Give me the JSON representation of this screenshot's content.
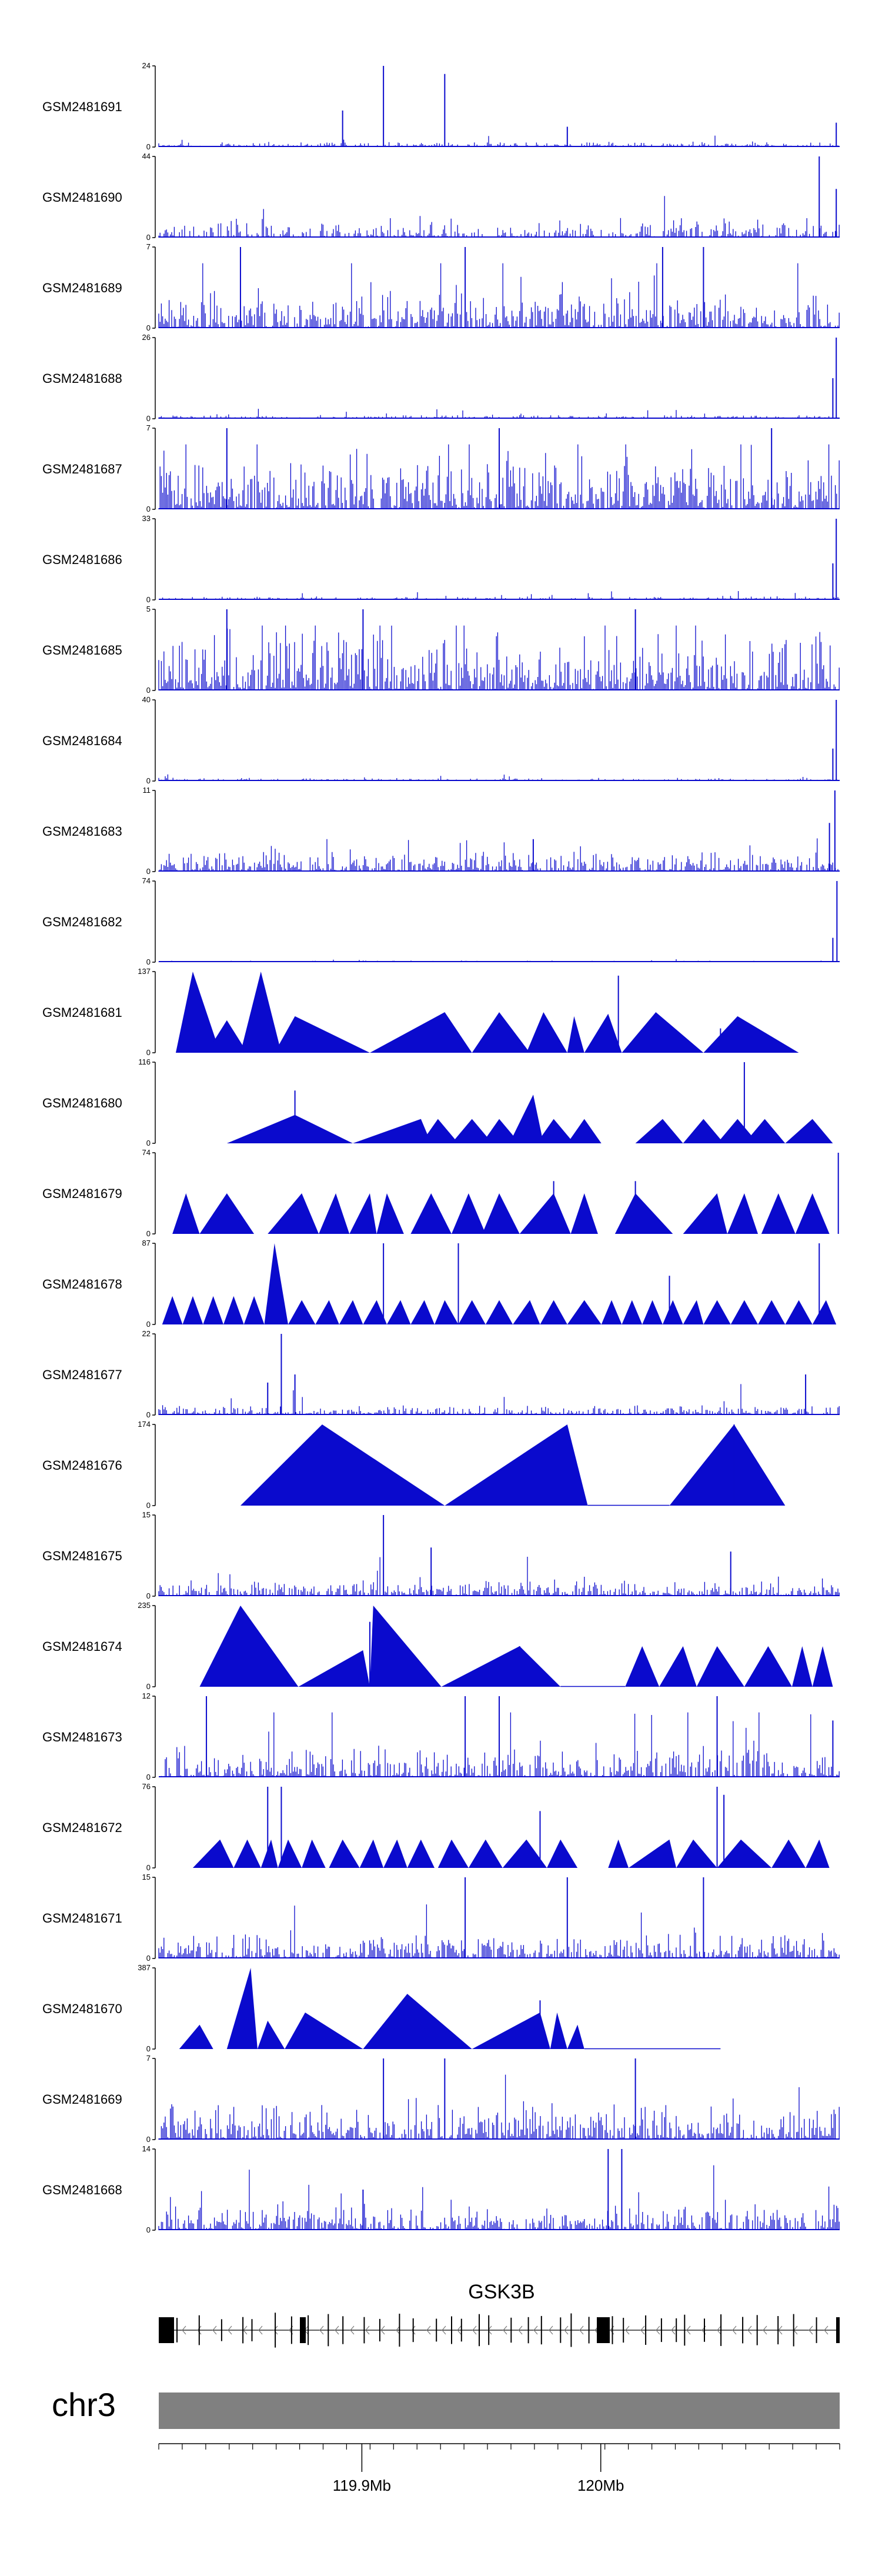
{
  "chart_data": {
    "type": "area",
    "chromosome": "chr3",
    "gene": "GSK3B",
    "x_axis": {
      "range_mb": [
        119.815,
        120.1
      ],
      "ticks": [
        {
          "value": 119.9,
          "label": "119.9Mb"
        },
        {
          "value": 120.0,
          "label": "120Mb"
        }
      ]
    },
    "colors": {
      "signal": "#0a0acd",
      "ideogram": "#808080",
      "gene": "#000000"
    },
    "tracks": [
      {
        "name": "GSM2481691",
        "ymax": "24",
        "style": "noise",
        "density": 0.9,
        "base": 0.05,
        "spikes": [
          [
            0.27,
            0.45
          ],
          [
            0.33,
            1.0
          ],
          [
            0.42,
            0.9
          ],
          [
            0.6,
            0.25
          ],
          [
            0.995,
            0.3
          ]
        ]
      },
      {
        "name": "GSM2481690",
        "ymax": "44",
        "style": "noise_gap",
        "density": 0.7,
        "base": 0.18,
        "gaps": [
          [
            0.65,
            0.66
          ]
        ],
        "spikes": [
          [
            0.97,
            1.0
          ],
          [
            0.995,
            0.6
          ]
        ]
      },
      {
        "name": "GSM2481689",
        "ymax": "7",
        "style": "noise",
        "density": 0.9,
        "base": 0.35,
        "spikes": [
          [
            0.12,
            1.0
          ],
          [
            0.45,
            1.0
          ],
          [
            0.74,
            1.0
          ],
          [
            0.8,
            1.0
          ]
        ]
      },
      {
        "name": "GSM2481688",
        "ymax": "26",
        "style": "noise",
        "density": 0.9,
        "base": 0.04,
        "spikes": [
          [
            0.995,
            1.0
          ],
          [
            0.99,
            0.5
          ]
        ]
      },
      {
        "name": "GSM2481687",
        "ymax": "7",
        "style": "noise",
        "density": 0.95,
        "base": 0.55,
        "spikes": [
          [
            0.1,
            1.0
          ],
          [
            0.5,
            1.0
          ],
          [
            0.9,
            1.0
          ]
        ]
      },
      {
        "name": "GSM2481686",
        "ymax": "33",
        "style": "noise",
        "density": 0.9,
        "base": 0.03,
        "spikes": [
          [
            0.995,
            1.0
          ],
          [
            0.99,
            0.45
          ]
        ]
      },
      {
        "name": "GSM2481685",
        "ymax": "5",
        "style": "noise",
        "density": 0.97,
        "base": 0.6,
        "spikes": [
          [
            0.1,
            1.0
          ],
          [
            0.3,
            1.0
          ],
          [
            0.7,
            1.0
          ]
        ]
      },
      {
        "name": "GSM2481684",
        "ymax": "40",
        "style": "noise",
        "density": 0.9,
        "base": 0.03,
        "spikes": [
          [
            0.995,
            1.0
          ],
          [
            0.99,
            0.4
          ]
        ]
      },
      {
        "name": "GSM2481683",
        "ymax": "11",
        "style": "noise",
        "density": 0.9,
        "base": 0.2,
        "spikes": [
          [
            0.993,
            1.0
          ],
          [
            0.985,
            0.6
          ],
          [
            0.55,
            0.4
          ]
        ]
      },
      {
        "name": "GSM2481682",
        "ymax": "74",
        "style": "noise",
        "density": 0.9,
        "base": 0.015,
        "spikes": [
          [
            0.996,
            1.0
          ],
          [
            0.99,
            0.3
          ]
        ]
      },
      {
        "name": "GSM2481681",
        "ymax": "137",
        "style": "peaks",
        "peaks": [
          [
            0.025,
            0.05,
            0.09,
            1.0
          ],
          [
            0.07,
            0.1,
            0.13,
            0.4
          ],
          [
            0.12,
            0.15,
            0.18,
            1.0
          ],
          [
            0.17,
            0.2,
            0.31,
            0.45
          ],
          [
            0.31,
            0.42,
            0.46,
            0.5
          ],
          [
            0.46,
            0.5,
            0.545,
            0.5
          ],
          [
            0.54,
            0.565,
            0.6,
            0.5
          ],
          [
            0.6,
            0.61,
            0.625,
            0.45
          ],
          [
            0.625,
            0.66,
            0.68,
            0.48
          ],
          [
            0.68,
            0.73,
            0.8,
            0.5
          ],
          [
            0.8,
            0.85,
            0.94,
            0.45
          ]
        ],
        "spikes": [
          [
            0.675,
            0.95
          ],
          [
            0.825,
            0.3
          ]
        ]
      },
      {
        "name": "GSM2481680",
        "ymax": "116",
        "style": "peaks",
        "peaks": [
          [
            0.1,
            0.2,
            0.285,
            0.35
          ],
          [
            0.285,
            0.385,
            0.4,
            0.3
          ],
          [
            0.385,
            0.41,
            0.44,
            0.3
          ],
          [
            0.43,
            0.46,
            0.49,
            0.3
          ],
          [
            0.475,
            0.5,
            0.53,
            0.3
          ],
          [
            0.515,
            0.55,
            0.565,
            0.6
          ],
          [
            0.555,
            0.58,
            0.61,
            0.3
          ],
          [
            0.6,
            0.625,
            0.65,
            0.3
          ],
          [
            0.7,
            0.74,
            0.77,
            0.3
          ],
          [
            0.77,
            0.8,
            0.83,
            0.3
          ],
          [
            0.82,
            0.85,
            0.88,
            0.3
          ],
          [
            0.86,
            0.89,
            0.92,
            0.3
          ],
          [
            0.92,
            0.96,
            0.99,
            0.3
          ]
        ],
        "spikes": [
          [
            0.2,
            0.65
          ],
          [
            0.86,
            1.0
          ]
        ]
      },
      {
        "name": "GSM2481679",
        "ymax": "74",
        "style": "peaks",
        "peaks": [
          [
            0.02,
            0.04,
            0.06,
            0.5
          ],
          [
            0.06,
            0.1,
            0.14,
            0.5
          ],
          [
            0.16,
            0.21,
            0.235,
            0.5
          ],
          [
            0.235,
            0.26,
            0.28,
            0.5
          ],
          [
            0.28,
            0.31,
            0.32,
            0.5
          ],
          [
            0.32,
            0.335,
            0.36,
            0.5
          ],
          [
            0.37,
            0.4,
            0.43,
            0.5
          ],
          [
            0.43,
            0.455,
            0.48,
            0.5
          ],
          [
            0.475,
            0.5,
            0.53,
            0.5
          ],
          [
            0.53,
            0.58,
            0.605,
            0.5
          ],
          [
            0.605,
            0.625,
            0.645,
            0.5
          ],
          [
            0.67,
            0.7,
            0.755,
            0.5
          ],
          [
            0.77,
            0.82,
            0.835,
            0.5
          ],
          [
            0.835,
            0.86,
            0.88,
            0.5
          ],
          [
            0.885,
            0.91,
            0.935,
            0.5
          ],
          [
            0.935,
            0.96,
            0.985,
            0.5
          ]
        ],
        "spikes": [
          [
            0.58,
            0.65
          ],
          [
            0.7,
            0.65
          ],
          [
            0.998,
            1.0
          ]
        ]
      },
      {
        "name": "GSM2481678",
        "ymax": "87",
        "style": "peaks",
        "peaks": [
          [
            0.005,
            0.02,
            0.035,
            0.35
          ],
          [
            0.035,
            0.05,
            0.065,
            0.35
          ],
          [
            0.065,
            0.08,
            0.095,
            0.35
          ],
          [
            0.095,
            0.11,
            0.125,
            0.35
          ],
          [
            0.125,
            0.14,
            0.155,
            0.35
          ],
          [
            0.155,
            0.17,
            0.19,
            1.0
          ],
          [
            0.19,
            0.21,
            0.23,
            0.3
          ],
          [
            0.23,
            0.25,
            0.265,
            0.3
          ],
          [
            0.265,
            0.285,
            0.3,
            0.3
          ],
          [
            0.3,
            0.32,
            0.335,
            0.3
          ],
          [
            0.335,
            0.355,
            0.37,
            0.3
          ],
          [
            0.37,
            0.39,
            0.405,
            0.3
          ],
          [
            0.405,
            0.42,
            0.44,
            0.3
          ],
          [
            0.44,
            0.46,
            0.48,
            0.3
          ],
          [
            0.48,
            0.5,
            0.52,
            0.3
          ],
          [
            0.52,
            0.545,
            0.56,
            0.3
          ],
          [
            0.56,
            0.58,
            0.6,
            0.3
          ],
          [
            0.6,
            0.625,
            0.65,
            0.3
          ],
          [
            0.65,
            0.665,
            0.68,
            0.3
          ],
          [
            0.68,
            0.695,
            0.71,
            0.3
          ],
          [
            0.71,
            0.725,
            0.74,
            0.3
          ],
          [
            0.74,
            0.755,
            0.77,
            0.3
          ],
          [
            0.77,
            0.79,
            0.8,
            0.3
          ],
          [
            0.8,
            0.82,
            0.84,
            0.3
          ],
          [
            0.84,
            0.86,
            0.88,
            0.3
          ],
          [
            0.88,
            0.9,
            0.92,
            0.3
          ],
          [
            0.92,
            0.94,
            0.96,
            0.3
          ],
          [
            0.96,
            0.98,
            0.995,
            0.3
          ]
        ],
        "spikes": [
          [
            0.33,
            1.0
          ],
          [
            0.44,
            1.0
          ],
          [
            0.75,
            0.6
          ],
          [
            0.97,
            1.0
          ]
        ]
      },
      {
        "name": "GSM2481677",
        "ymax": "22",
        "style": "noise",
        "density": 0.9,
        "base": 0.1,
        "spikes": [
          [
            0.16,
            0.4
          ],
          [
            0.18,
            1.0
          ],
          [
            0.2,
            0.5
          ],
          [
            0.95,
            0.5
          ]
        ]
      },
      {
        "name": "GSM2481676",
        "ymax": "174",
        "style": "peaks",
        "peaks": [
          [
            0.12,
            0.24,
            0.42,
            1.0
          ],
          [
            0.42,
            0.6,
            0.63,
            1.0
          ],
          [
            0.75,
            0.845,
            0.92,
            1.0
          ]
        ],
        "flat": [
          [
            0.63,
            0.75
          ]
        ],
        "spikes": [
          [
            0.845,
            1.0
          ]
        ]
      },
      {
        "name": "GSM2481675",
        "ymax": "15",
        "style": "noise",
        "density": 0.9,
        "base": 0.15,
        "spikes": [
          [
            0.33,
            1.0
          ],
          [
            0.4,
            0.6
          ],
          [
            0.84,
            0.55
          ]
        ]
      },
      {
        "name": "GSM2481674",
        "ymax": "235",
        "style": "peaks",
        "peaks": [
          [
            0.06,
            0.12,
            0.205,
            1.0
          ],
          [
            0.205,
            0.3,
            0.31,
            0.45
          ],
          [
            0.31,
            0.315,
            0.415,
            1.0
          ],
          [
            0.415,
            0.53,
            0.59,
            0.5
          ],
          [
            0.685,
            0.71,
            0.735,
            0.5
          ],
          [
            0.735,
            0.77,
            0.79,
            0.5
          ],
          [
            0.79,
            0.82,
            0.86,
            0.5
          ],
          [
            0.86,
            0.895,
            0.93,
            0.5
          ],
          [
            0.93,
            0.945,
            0.96,
            0.5
          ],
          [
            0.96,
            0.975,
            0.99,
            0.5
          ]
        ],
        "flat": [
          [
            0.59,
            0.685
          ]
        ],
        "spikes": [
          [
            0.31,
            0.8
          ],
          [
            0.53,
            0.5
          ]
        ]
      },
      {
        "name": "GSM2481673",
        "ymax": "12",
        "style": "noise",
        "density": 0.85,
        "base": 0.3,
        "spikes": [
          [
            0.07,
            1.0
          ],
          [
            0.45,
            1.0
          ],
          [
            0.5,
            1.0
          ],
          [
            0.82,
            1.0
          ],
          [
            0.99,
            0.7
          ]
        ]
      },
      {
        "name": "GSM2481672",
        "ymax": "76",
        "style": "peaks",
        "peaks": [
          [
            0.05,
            0.09,
            0.11,
            0.35
          ],
          [
            0.11,
            0.13,
            0.15,
            0.35
          ],
          [
            0.15,
            0.165,
            0.175,
            0.35
          ],
          [
            0.175,
            0.19,
            0.21,
            0.35
          ],
          [
            0.21,
            0.225,
            0.245,
            0.35
          ],
          [
            0.25,
            0.27,
            0.295,
            0.35
          ],
          [
            0.295,
            0.315,
            0.33,
            0.35
          ],
          [
            0.33,
            0.35,
            0.365,
            0.35
          ],
          [
            0.365,
            0.385,
            0.405,
            0.35
          ],
          [
            0.41,
            0.43,
            0.455,
            0.35
          ],
          [
            0.455,
            0.48,
            0.505,
            0.35
          ],
          [
            0.505,
            0.54,
            0.57,
            0.35
          ],
          [
            0.57,
            0.59,
            0.615,
            0.35
          ],
          [
            0.66,
            0.675,
            0.69,
            0.35
          ],
          [
            0.69,
            0.75,
            0.76,
            0.35
          ],
          [
            0.76,
            0.785,
            0.82,
            0.35
          ],
          [
            0.82,
            0.855,
            0.9,
            0.35
          ],
          [
            0.9,
            0.925,
            0.95,
            0.35
          ],
          [
            0.95,
            0.97,
            0.985,
            0.35
          ]
        ],
        "spikes": [
          [
            0.16,
            1.0
          ],
          [
            0.18,
            1.0
          ],
          [
            0.56,
            0.7
          ],
          [
            0.82,
            1.0
          ],
          [
            0.83,
            0.9
          ]
        ]
      },
      {
        "name": "GSM2481671",
        "ymax": "15",
        "style": "noise",
        "density": 0.9,
        "base": 0.25,
        "spikes": [
          [
            0.45,
            1.0
          ],
          [
            0.6,
            1.0
          ],
          [
            0.8,
            1.0
          ]
        ]
      },
      {
        "name": "GSM2481670",
        "ymax": "387",
        "style": "peaks",
        "peaks": [
          [
            0.03,
            0.06,
            0.08,
            0.3
          ],
          [
            0.1,
            0.135,
            0.145,
            1.0
          ],
          [
            0.145,
            0.16,
            0.185,
            0.35
          ],
          [
            0.185,
            0.215,
            0.3,
            0.45
          ],
          [
            0.3,
            0.365,
            0.46,
            0.68
          ],
          [
            0.46,
            0.56,
            0.575,
            0.45
          ],
          [
            0.575,
            0.585,
            0.6,
            0.45
          ],
          [
            0.6,
            0.615,
            0.625,
            0.3
          ]
        ],
        "flat": [
          [
            0.625,
            0.825
          ]
        ],
        "spikes": [
          [
            0.56,
            0.6
          ]
        ]
      },
      {
        "name": "GSM2481669",
        "ymax": "7",
        "style": "noise",
        "density": 0.9,
        "base": 0.35,
        "spikes": [
          [
            0.33,
            1.0
          ],
          [
            0.42,
            1.0
          ],
          [
            0.7,
            1.0
          ]
        ]
      },
      {
        "name": "GSM2481668",
        "ymax": "14",
        "style": "noise",
        "density": 0.9,
        "base": 0.25,
        "spikes": [
          [
            0.66,
            1.0
          ],
          [
            0.68,
            1.0
          ],
          [
            0.3,
            0.5
          ]
        ]
      }
    ]
  }
}
